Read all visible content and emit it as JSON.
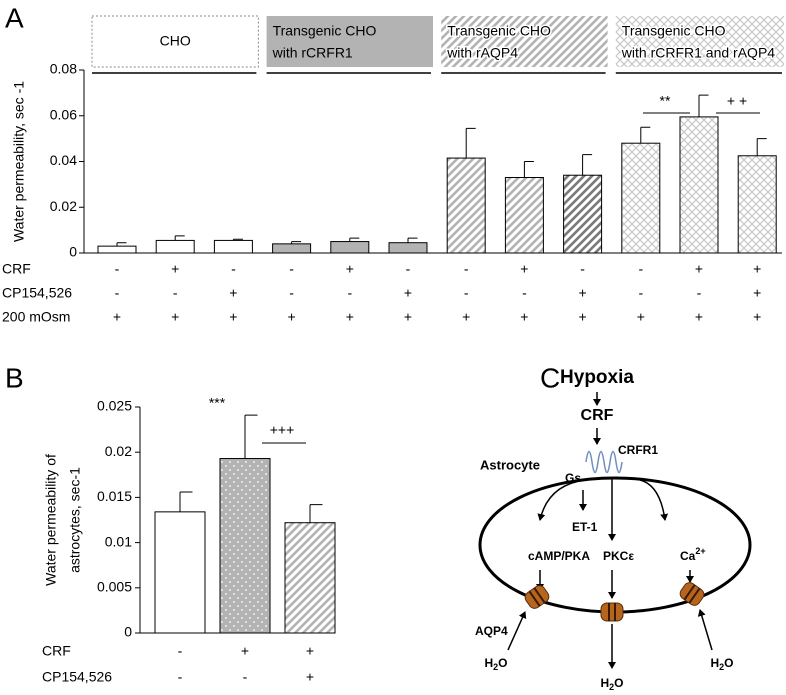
{
  "chart_data": [
    {
      "type": "bar",
      "panel": "A",
      "ylabel": "Water permeability, sec -1",
      "ylim": [
        0,
        0.08
      ],
      "yticks": [
        0,
        0.02,
        0.04,
        0.06,
        0.08
      ],
      "values": [
        0.003,
        0.0055,
        0.0055,
        0.004,
        0.005,
        0.0045,
        0.0415,
        0.033,
        0.034,
        0.048,
        0.0595,
        0.0425
      ],
      "errors": [
        0.0015,
        0.002,
        0.0005,
        0.001,
        0.0015,
        0.002,
        0.013,
        0.007,
        0.009,
        0.007,
        0.0095,
        0.0075
      ],
      "colors": [
        "#ffffff",
        "#ffffff",
        "#ffffff",
        "#b3b3b3",
        "#b3b3b3",
        "#b3b3b3",
        "#b3b3b3",
        "#b3b3b3",
        "#7a7a7a",
        "#c8c8c8",
        "#c8c8c8",
        "#c8c8c8"
      ],
      "patterns": [
        "none",
        "none",
        "none",
        "none",
        "none",
        "none",
        "diagonal",
        "diagonal",
        "diagonal",
        "cross",
        "cross",
        "cross"
      ],
      "groups": [
        {
          "lines": [
            "CHO"
          ],
          "color": "#ffffff",
          "pattern": "none"
        },
        {
          "lines": [
            "Transgenic CHO",
            "with rCRFR1"
          ],
          "color": "#b3b3b3",
          "pattern": "none"
        },
        {
          "lines": [
            "Transgenic CHO",
            "with rAQP4"
          ],
          "color": "#b3b3b3",
          "pattern": "diagonal"
        },
        {
          "lines": [
            "Transgenic CHO",
            "with rCRFR1 and rAQP4"
          ],
          "color": "#c8c8c8",
          "pattern": "cross"
        }
      ],
      "conditions": [
        {
          "name": "CRF",
          "marks": [
            "-",
            "+",
            "-",
            "-",
            "+",
            "-",
            "-",
            "+",
            "-",
            "-",
            "+",
            "+"
          ]
        },
        {
          "name": "CP154,526",
          "marks": [
            "-",
            "-",
            "+",
            "-",
            "-",
            "+",
            "-",
            "-",
            "+",
            "-",
            "-",
            "+"
          ]
        },
        {
          "name": "200 mOsm",
          "marks": [
            "+",
            "+",
            "+",
            "+",
            "+",
            "+",
            "+",
            "+",
            "+",
            "+",
            "+",
            "+"
          ]
        }
      ],
      "annotations": [
        "**",
        "+ +"
      ]
    },
    {
      "type": "bar",
      "panel": "B",
      "ylabel": [
        "Water permeability of",
        "astrocytes, sec-1"
      ],
      "ylim": [
        0,
        0.025
      ],
      "yticks": [
        0,
        0.005,
        0.01,
        0.015,
        0.02,
        0.025
      ],
      "values": [
        0.0134,
        0.0193,
        0.0122
      ],
      "errors": [
        0.0022,
        0.0048,
        0.002
      ],
      "colors": [
        "#ffffff",
        "#b3b3b3",
        "#b3b3b3"
      ],
      "patterns": [
        "none",
        "dots",
        "diagonal"
      ],
      "conditions": [
        {
          "name": "CRF",
          "marks": [
            "-",
            "+",
            "+"
          ]
        },
        {
          "name": "CP154,526",
          "marks": [
            "-",
            "-",
            "+"
          ]
        }
      ],
      "annotations": [
        "***",
        "+++"
      ]
    }
  ],
  "diagram": {
    "panel": "C",
    "hypoxia": "Hypoxia",
    "crf": "CRF",
    "receptor": "CRFR1",
    "cell": "Astrocyte",
    "gs": "Gs",
    "et1": "ET-1",
    "camp": "cAMP/PKA",
    "pkc": "PKCε",
    "calcium": {
      "base": "Ca",
      "sup": "2+"
    },
    "channel": "AQP4",
    "water": {
      "base": "H",
      "sub": "2",
      "tail": "O"
    }
  }
}
